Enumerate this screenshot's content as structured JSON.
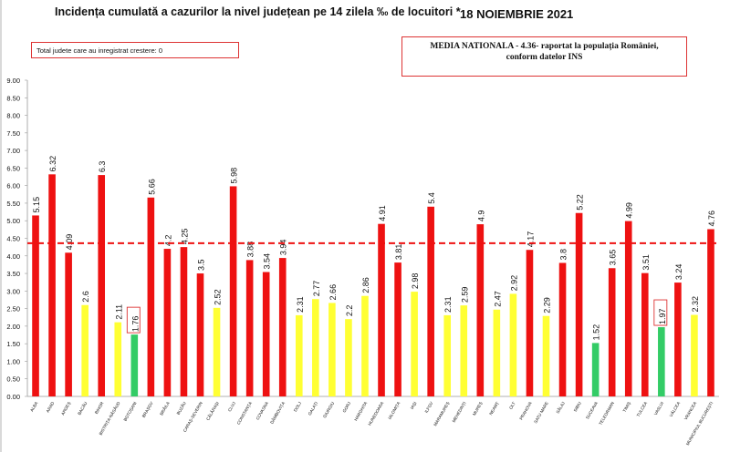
{
  "header": {
    "title": "Incidența cumulată a cazurilor la nivel județean pe 14 zilela ‰ de locuitori *",
    "date": "18 NOIEMBRIE 2021",
    "note": "Total judete care au inregistrat crestere: 0",
    "media_line1": "MEDIA NATIONALA - 4.36- raportat la populația României,",
    "media_line2": "conform datelor INS"
  },
  "colors": {
    "red": "#ee1111",
    "yellow": "#ffff33",
    "green": "#33cc66",
    "dash": "#ee1111"
  },
  "chart_data": {
    "type": "bar",
    "ylim": [
      0,
      9
    ],
    "yticks": [
      "0.00",
      "0.50",
      "1.00",
      "1.50",
      "2.00",
      "2.50",
      "3.00",
      "3.50",
      "4.00",
      "4.50",
      "5.00",
      "5.50",
      "6.00",
      "6.50",
      "7.00",
      "7.50",
      "8.00",
      "8.50",
      "9.00"
    ],
    "reference_line": 4.36,
    "categories": [
      "ALBA",
      "ARAD",
      "ARGEȘ",
      "BACĂU",
      "BIHOR",
      "BISTRIȚA-NĂSĂUD",
      "BOTOȘANI",
      "BRAȘOV",
      "BRĂILA",
      "BUZĂU",
      "CARAȘ-SEVERIN",
      "CĂLĂRAȘI",
      "CLUJ",
      "CONSTANȚA",
      "COVASNA",
      "DÂMBOVIȚA",
      "DOLJ",
      "GALAȚI",
      "GIURGIU",
      "GORJ",
      "HARGHITA",
      "HUNEDOARA",
      "IALOMIȚA",
      "IAȘI",
      "ILFOV",
      "MARAMUREȘ",
      "MEHEDINȚI",
      "MUREȘ",
      "NEAMȚ",
      "OLT",
      "PRAHOVA",
      "SATU MARE",
      "SĂLAJ",
      "SIBIU",
      "SUCEAVA",
      "TELEORMAN",
      "TIMIȘ",
      "TULCEA",
      "VASLUI",
      "VÂLCEA",
      "VRANCEA",
      "MUNICIPIUL BUCUREȘTI"
    ],
    "values": [
      5.15,
      6.32,
      4.09,
      2.6,
      6.3,
      2.11,
      1.76,
      5.66,
      4.2,
      4.25,
      3.5,
      2.52,
      5.98,
      3.88,
      3.54,
      3.94,
      2.31,
      2.77,
      2.66,
      2.2,
      2.86,
      4.91,
      3.81,
      2.98,
      5.4,
      2.31,
      2.59,
      4.9,
      2.47,
      2.92,
      4.17,
      2.29,
      3.8,
      5.22,
      1.52,
      3.65,
      4.99,
      3.51,
      1.97,
      3.24,
      2.32,
      4.76
    ],
    "labels": [
      "5.15",
      "6.32",
      "4.09",
      "2.6",
      "6.3",
      "2.11",
      "1.76",
      "5.66",
      "4.2",
      "4.25",
      "3.5",
      "2.52",
      "5.98",
      "3.88",
      "3.54",
      "3.94",
      "2.31",
      "2.77",
      "2.66",
      "2.2",
      "2.86",
      "4.91",
      "3.81",
      "2.98",
      "5.4",
      "2.31",
      "2.59",
      "4.9",
      "2.47",
      "2.92",
      "4.17",
      "2.29",
      "3.8",
      "5.22",
      "1.52",
      "3.65",
      "4.99",
      "3.51",
      "1.97",
      "3.24",
      "2.32",
      "4.76"
    ],
    "bar_colors": [
      "red",
      "red",
      "red",
      "yellow",
      "red",
      "yellow",
      "green",
      "red",
      "red",
      "red",
      "red",
      "yellow",
      "red",
      "red",
      "red",
      "red",
      "yellow",
      "yellow",
      "yellow",
      "yellow",
      "yellow",
      "red",
      "red",
      "yellow",
      "red",
      "yellow",
      "yellow",
      "red",
      "yellow",
      "yellow",
      "red",
      "yellow",
      "red",
      "red",
      "green",
      "red",
      "red",
      "red",
      "green",
      "red",
      "yellow",
      "red"
    ],
    "boxed_labels": [
      6,
      38
    ]
  }
}
